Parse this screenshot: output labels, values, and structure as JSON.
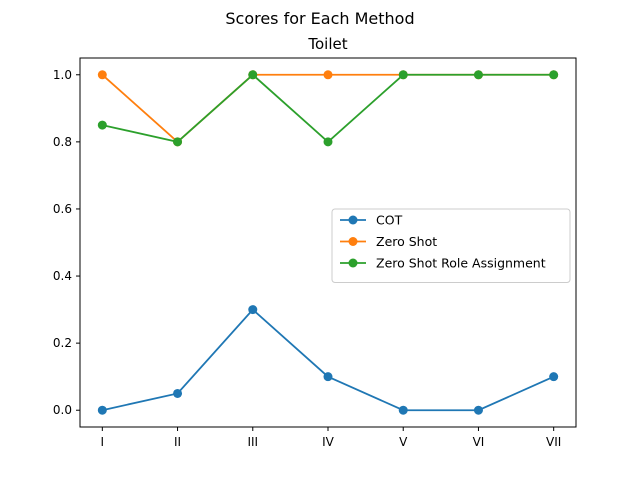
{
  "chart_data": {
    "type": "line",
    "suptitle": "Scores for Each Method",
    "title": "Toilet",
    "xlabel": "",
    "ylabel": "",
    "categories": [
      "I",
      "II",
      "III",
      "IV",
      "V",
      "VI",
      "VII"
    ],
    "ylim": [
      -0.05,
      1.05
    ],
    "yticks": [
      0.0,
      0.2,
      0.4,
      0.6,
      0.8,
      1.0
    ],
    "ytick_labels": [
      "0.0",
      "0.2",
      "0.4",
      "0.6",
      "0.8",
      "1.0"
    ],
    "grid": false,
    "legend_position": "center-right",
    "marker": "circle",
    "series": [
      {
        "name": "COT",
        "color": "#1f77b4",
        "values": [
          0.0,
          0.05,
          0.3,
          0.1,
          0.0,
          0.0,
          0.1
        ]
      },
      {
        "name": "Zero Shot",
        "color": "#ff7f0e",
        "values": [
          1.0,
          0.8,
          1.0,
          1.0,
          1.0,
          1.0,
          1.0
        ]
      },
      {
        "name": "Zero Shot Role Assignment",
        "color": "#2ca02c",
        "values": [
          0.85,
          0.8,
          1.0,
          0.8,
          1.0,
          1.0,
          1.0
        ]
      }
    ]
  }
}
